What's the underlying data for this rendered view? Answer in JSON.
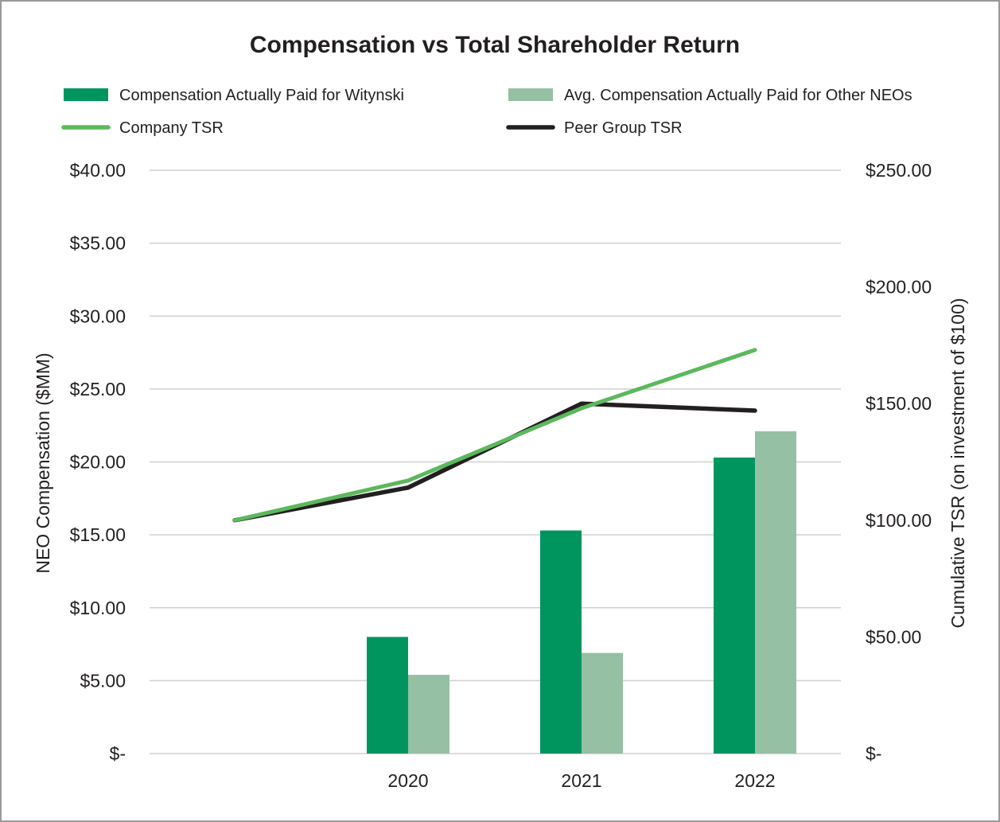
{
  "chart_data": {
    "type": "bar",
    "title": "Compensation vs Total Shareholder Return",
    "categories": [
      "",
      "2020",
      "2021",
      "2022"
    ],
    "series": [
      {
        "name": "Compensation Actually Paid for Witynski",
        "kind": "bar",
        "axis": "left",
        "color": "#00955f",
        "values": [
          null,
          8.0,
          15.3,
          20.3
        ]
      },
      {
        "name": "Avg. Compensation Actually Paid for Other NEOs",
        "kind": "bar",
        "axis": "left",
        "color": "#95c0a3",
        "values": [
          null,
          5.4,
          6.9,
          22.1
        ]
      },
      {
        "name": "Company TSR",
        "kind": "line",
        "axis": "right",
        "color": "#5cb85c",
        "values": [
          100,
          117,
          148,
          173
        ]
      },
      {
        "name": "Peer Group TSR",
        "kind": "line",
        "axis": "right",
        "color": "#231f20",
        "values": [
          100,
          114,
          150,
          147
        ]
      }
    ],
    "ylabel": "NEO Compensation ($MM)",
    "y2label": "Cumulative TSR (on investment of $100)",
    "ylim": [
      0,
      40
    ],
    "y2lim": [
      0,
      250
    ],
    "yticks": [
      0,
      5,
      10,
      15,
      20,
      25,
      30,
      35,
      40
    ],
    "ytick_labels": [
      "$-",
      "$5.00",
      "$10.00",
      "$15.00",
      "$20.00",
      "$25.00",
      "$30.00",
      "$35.00",
      "$40.00"
    ],
    "y2ticks": [
      0,
      50,
      100,
      150,
      200,
      250
    ],
    "y2tick_labels": [
      "$-",
      "$50.00",
      "$100.00",
      "$150.00",
      "$200.00",
      "$250.00"
    ],
    "grid": true,
    "legend_position": "top"
  }
}
